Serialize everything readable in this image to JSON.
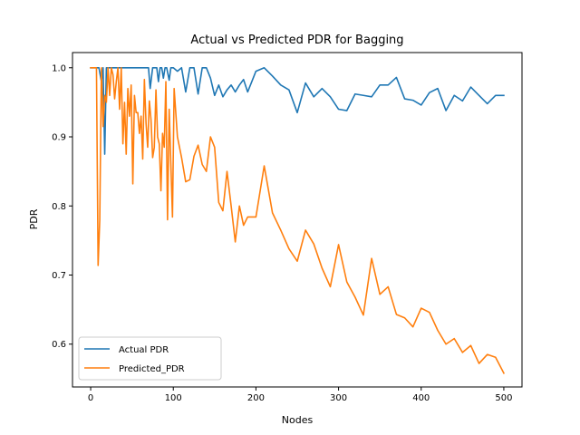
{
  "chart_data": {
    "type": "line",
    "title": "Actual vs Predicted PDR for Bagging",
    "xlabel": "Nodes",
    "ylabel": "PDR",
    "xlim": [
      -22,
      522
    ],
    "ylim": [
      0.538,
      1.022
    ],
    "xticks": [
      0,
      100,
      200,
      300,
      400,
      500
    ],
    "yticks": [
      0.6,
      0.7,
      0.8,
      0.9,
      1.0
    ],
    "xtick_labels": [
      "0",
      "100",
      "200",
      "300",
      "400",
      "500"
    ],
    "ytick_labels": [
      "0.6",
      "0.7",
      "0.8",
      "0.9",
      "1.0"
    ],
    "grid": false,
    "legend_position": "lower-left",
    "series": [
      {
        "name": "Actual PDR",
        "color": "#1f77b4",
        "x": [
          0,
          5,
          10,
          13,
          15,
          17,
          19,
          22,
          25,
          28,
          30,
          33,
          36,
          38,
          40,
          43,
          46,
          50,
          55,
          60,
          65,
          70,
          72,
          75,
          78,
          80,
          82,
          84,
          86,
          88,
          90,
          92,
          95,
          97,
          100,
          105,
          110,
          115,
          120,
          125,
          130,
          135,
          140,
          145,
          150,
          155,
          160,
          165,
          170,
          175,
          180,
          185,
          190,
          195,
          200,
          210,
          220,
          230,
          240,
          250,
          260,
          270,
          280,
          290,
          300,
          310,
          320,
          330,
          340,
          350,
          360,
          370,
          380,
          390,
          400,
          410,
          420,
          430,
          440,
          450,
          460,
          470,
          480,
          490,
          500
        ],
        "values": [
          1.0,
          1.0,
          1.0,
          0.98,
          1.0,
          0.875,
          1.0,
          1.0,
          1.0,
          1.0,
          1.0,
          1.0,
          1.0,
          1.0,
          1.0,
          1.0,
          1.0,
          1.0,
          1.0,
          1.0,
          1.0,
          1.0,
          0.97,
          1.0,
          1.0,
          1.0,
          0.98,
          1.0,
          1.0,
          0.985,
          1.0,
          1.0,
          0.982,
          1.0,
          1.0,
          0.995,
          1.0,
          0.965,
          1.0,
          1.0,
          0.962,
          1.0,
          1.0,
          0.985,
          0.96,
          0.975,
          0.958,
          0.968,
          0.975,
          0.965,
          0.975,
          0.983,
          0.965,
          0.98,
          0.995,
          1.0,
          0.988,
          0.975,
          0.968,
          0.935,
          0.978,
          0.958,
          0.97,
          0.958,
          0.94,
          0.938,
          0.962,
          0.96,
          0.958,
          0.975,
          0.975,
          0.986,
          0.955,
          0.953,
          0.946,
          0.964,
          0.97,
          0.938,
          0.96,
          0.952,
          0.972,
          0.96,
          0.948,
          0.96,
          0.96
        ]
      },
      {
        "name": "Predicted_PDR",
        "color": "#ff7f0e",
        "x": [
          0,
          3,
          5,
          7,
          9,
          11,
          13,
          15,
          17,
          19,
          21,
          23,
          25,
          27,
          29,
          31,
          33,
          35,
          37,
          39,
          41,
          43,
          45,
          47,
          49,
          51,
          53,
          55,
          57,
          59,
          61,
          63,
          65,
          67,
          69,
          71,
          73,
          75,
          77,
          79,
          81,
          83,
          85,
          87,
          89,
          91,
          93,
          95,
          97,
          99,
          101,
          105,
          110,
          115,
          120,
          125,
          130,
          135,
          140,
          145,
          150,
          155,
          160,
          165,
          170,
          175,
          180,
          185,
          190,
          195,
          200,
          210,
          220,
          230,
          240,
          250,
          260,
          270,
          280,
          290,
          300,
          310,
          320,
          330,
          340,
          350,
          360,
          370,
          380,
          390,
          400,
          410,
          420,
          430,
          440,
          450,
          460,
          470,
          480,
          490,
          500
        ],
        "values": [
          1.0,
          1.0,
          1.0,
          1.0,
          0.714,
          0.78,
          1.0,
          0.915,
          0.96,
          0.95,
          1.0,
          0.96,
          1.0,
          0.99,
          0.955,
          0.98,
          1.0,
          0.94,
          1.0,
          0.89,
          0.95,
          0.875,
          0.97,
          0.93,
          0.975,
          0.832,
          0.96,
          0.935,
          0.935,
          0.905,
          0.93,
          0.868,
          0.983,
          0.92,
          0.885,
          0.952,
          0.925,
          0.87,
          0.885,
          0.968,
          0.9,
          0.89,
          0.822,
          0.905,
          0.885,
          0.98,
          0.78,
          0.94,
          0.862,
          0.784,
          0.97,
          0.9,
          0.87,
          0.835,
          0.838,
          0.872,
          0.888,
          0.86,
          0.85,
          0.9,
          0.885,
          0.805,
          0.793,
          0.85,
          0.8,
          0.748,
          0.8,
          0.772,
          0.784,
          0.784,
          0.784,
          0.858,
          0.79,
          0.765,
          0.738,
          0.72,
          0.765,
          0.745,
          0.71,
          0.683,
          0.744,
          0.69,
          0.668,
          0.642,
          0.724,
          0.672,
          0.683,
          0.643,
          0.638,
          0.625,
          0.652,
          0.646,
          0.62,
          0.6,
          0.608,
          0.588,
          0.598,
          0.572,
          0.585,
          0.581,
          0.558
        ]
      }
    ]
  }
}
